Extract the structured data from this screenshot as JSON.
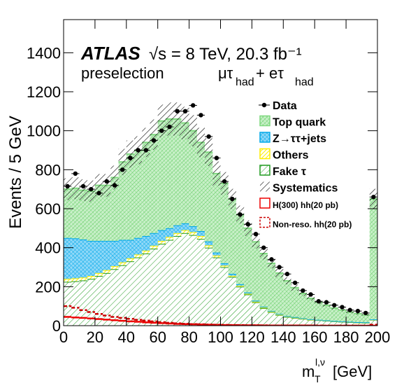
{
  "chart_data": {
    "type": "histogram",
    "y_label": "Events / 5 GeV",
    "x_label": {
      "main": "m",
      "sub": "T",
      "sup": "l,ν",
      "unit": "[GeV]"
    },
    "annotations": {
      "experiment": "ATLAS",
      "energy": "√s = 8 TeV, 20.3 fb⁻¹",
      "selection": "preselection",
      "channel": [
        "μτ",
        "had",
        " + eτ",
        "had"
      ]
    },
    "bins": [
      0,
      5,
      10,
      15,
      20,
      25,
      30,
      35,
      40,
      45,
      50,
      55,
      60,
      65,
      70,
      75,
      80,
      85,
      90,
      95,
      100,
      105,
      110,
      115,
      120,
      125,
      130,
      135,
      140,
      145,
      150,
      155,
      160,
      165,
      170,
      175,
      180,
      185,
      190,
      195,
      200
    ],
    "xlim": [
      0,
      200
    ],
    "ylim": [
      0,
      1570
    ],
    "xticks": [
      0,
      20,
      40,
      60,
      80,
      100,
      120,
      140,
      160,
      180,
      200
    ],
    "yticks": [
      0,
      200,
      400,
      600,
      800,
      1000,
      1200,
      1400
    ],
    "stack": [
      {
        "name": "Fake  τ",
        "color": "#1f9a1f",
        "values": [
          225,
          228,
          232,
          240,
          255,
          270,
          290,
          310,
          330,
          350,
          370,
          395,
          420,
          440,
          460,
          475,
          465,
          445,
          400,
          350,
          300,
          250,
          200,
          160,
          120,
          90,
          70,
          55,
          45,
          40,
          35,
          30,
          28,
          25,
          22,
          20,
          18,
          16,
          15,
          30
        ]
      },
      {
        "name": "Others",
        "color": "#ffee00",
        "values": [
          15,
          15,
          15,
          15,
          15,
          15,
          15,
          15,
          15,
          15,
          15,
          15,
          15,
          15,
          15,
          15,
          15,
          15,
          12,
          10,
          8,
          6,
          5,
          4,
          3,
          3,
          2,
          2,
          2,
          2,
          1,
          1,
          1,
          1,
          1,
          1,
          1,
          1,
          1,
          1
        ]
      },
      {
        "name": "Z→ττ+jets",
        "color": "#00a8e8",
        "values": [
          210,
          205,
          195,
          180,
          165,
          150,
          130,
          115,
          95,
          85,
          75,
          65,
          55,
          45,
          40,
          35,
          30,
          25,
          20,
          15,
          12,
          10,
          8,
          6,
          5,
          4,
          3,
          3,
          2,
          2,
          2,
          2,
          1,
          1,
          1,
          1,
          1,
          1,
          1,
          1
        ]
      },
      {
        "name": "Top quark",
        "color": "#7fd97f",
        "values": [
          250,
          257,
          253,
          255,
          285,
          285,
          325,
          400,
          440,
          450,
          480,
          505,
          560,
          560,
          545,
          515,
          490,
          455,
          458,
          405,
          410,
          384,
          357,
          330,
          302,
          273,
          245,
          210,
          181,
          151,
          127,
          107,
          90,
          78,
          66,
          58,
          50,
          44,
          38,
          618
        ]
      }
    ],
    "systematics": {
      "name": "Systematics",
      "values": [
        56,
        56,
        56,
        55,
        58,
        58,
        61,
        67,
        70,
        72,
        75,
        78,
        84,
        85,
        85,
        83,
        80,
        75,
        71,
        62,
        58,
        52,
        46,
        40,
        34,
        30,
        26,
        22,
        18,
        16,
        13,
        11,
        10,
        8,
        7,
        6,
        6,
        5,
        4,
        52
      ]
    },
    "data": {
      "name": "Data",
      "values": [
        715,
        780,
        715,
        700,
        680,
        740,
        720,
        800,
        860,
        900,
        900,
        950,
        1000,
        1020,
        1100,
        1100,
        1130,
        1080,
        970,
        860,
        740,
        650,
        570,
        520,
        470,
        400,
        340,
        300,
        265,
        220,
        180,
        160,
        125,
        120,
        105,
        95,
        80,
        75,
        65,
        660
      ]
    },
    "signals": [
      {
        "name": "H(300) hh(20 pb)",
        "color": "#ee0000",
        "dashed": false,
        "values": [
          45,
          42,
          40,
          37,
          34,
          31,
          28,
          25,
          22,
          20,
          17,
          15,
          13,
          11,
          9,
          8,
          7,
          6,
          5,
          4,
          3,
          3,
          2,
          2,
          2,
          1,
          1,
          1,
          1,
          1,
          1,
          1,
          0,
          0,
          0,
          0,
          0,
          0,
          0,
          0
        ]
      },
      {
        "name": "Non-reso. hh(20 pb)",
        "color": "#cc0000",
        "dashed": true,
        "values": [
          100,
          92,
          80,
          70,
          60,
          52,
          45,
          40,
          35,
          30,
          26,
          22,
          18,
          15,
          12,
          10,
          8,
          7,
          6,
          5,
          4,
          3,
          3,
          2,
          2,
          2,
          1,
          1,
          1,
          1,
          1,
          1,
          1,
          0,
          0,
          0,
          0,
          0,
          0,
          5
        ]
      }
    ]
  }
}
